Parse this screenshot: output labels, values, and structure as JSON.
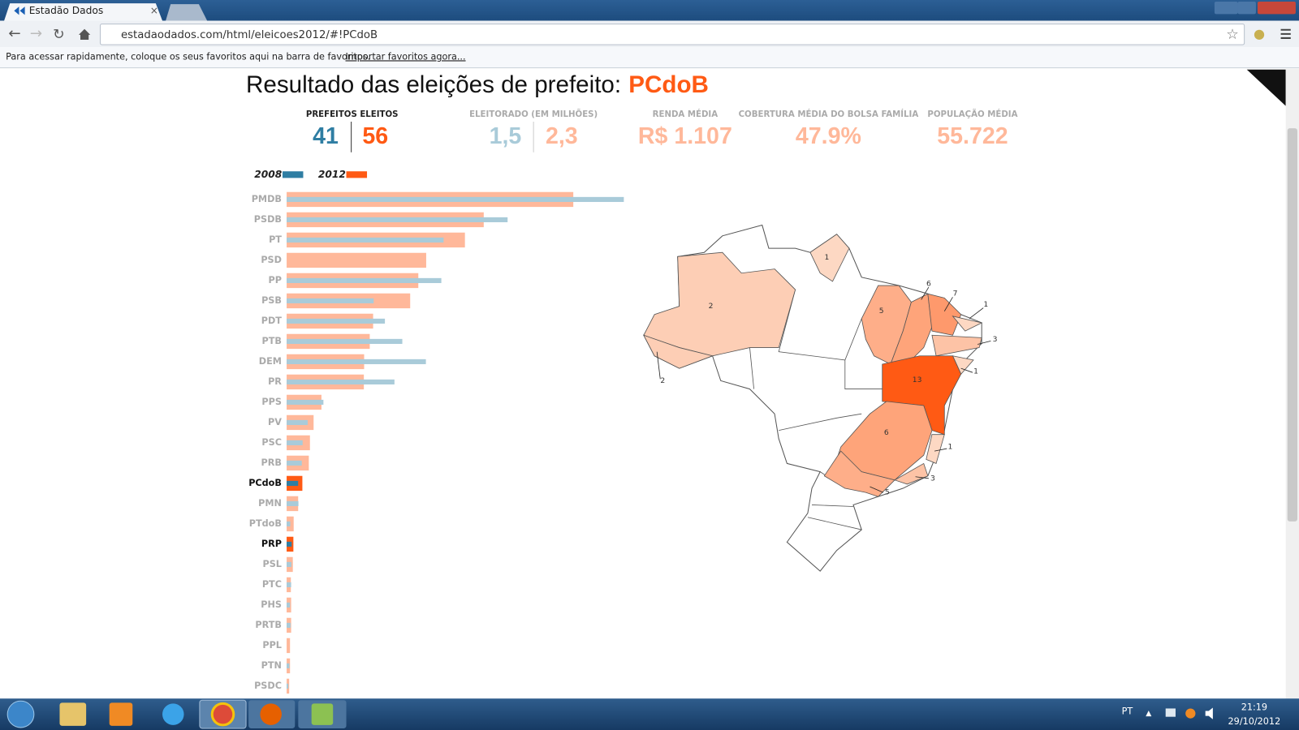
{
  "browser": {
    "tab_title": "Estadão Dados",
    "url": "estadaodados.com/html/eleicoes2012/#!PCdoB",
    "bookmarks_text": "Para acessar rapidamente, coloque os seus favoritos aqui na barra de favoritos.",
    "bookmarks_link": "Importar favoritos agora..."
  },
  "header": {
    "title": "Resultado das eleições de prefeito:",
    "party": "PCdoB"
  },
  "stats": [
    {
      "label": "PREFEITOS ELEITOS",
      "values": [
        "41",
        "56"
      ]
    },
    {
      "label": "ELEITORADO (EM MILHÕES)",
      "values": [
        "1,5",
        "2,3"
      ]
    },
    {
      "label": "RENDA MÉDIA",
      "values": [
        "R$ 1.107"
      ]
    },
    {
      "label": "COBERTURA MÉDIA DO BOLSA FAMÍLIA",
      "values": [
        "47.9%"
      ]
    },
    {
      "label": "POPULAÇÃO MÉDIA",
      "values": [
        "55.722"
      ]
    }
  ],
  "chart_data": {
    "type": "bar",
    "orientation": "horizontal",
    "categories": [
      "PMDB",
      "PSDB",
      "PT",
      "PSD",
      "PP",
      "PSB",
      "PDT",
      "PTB",
      "DEM",
      "PR",
      "PPS",
      "PV",
      "PSC",
      "PRB",
      "PCdoB",
      "PMN",
      "PTdoB",
      "PRP",
      "PSL",
      "PTC",
      "PHS",
      "PRTB",
      "PPL",
      "PTN",
      "PSDC"
    ],
    "series": [
      {
        "name": "2008",
        "color": "#2f7ea3",
        "muted_color": "#a9cbd9",
        "values": [
          1201,
          787,
          559,
          0,
          551,
          310,
          350,
          412,
          496,
          384,
          131,
          75,
          57,
          54,
          41,
          42,
          13,
          18,
          17,
          16,
          12,
          14,
          0,
          10,
          6
        ]
      },
      {
        "name": "2012",
        "color": "#ff5a14",
        "muted_color": "#ffb89a",
        "values": [
          1021,
          702,
          635,
          497,
          469,
          440,
          308,
          296,
          276,
          275,
          124,
          96,
          83,
          79,
          56,
          41,
          25,
          24,
          22,
          15,
          16,
          16,
          12,
          12,
          9
        ]
      }
    ],
    "highlight": [
      14,
      17
    ]
  },
  "map": {
    "regions": [
      {
        "value": 2
      },
      {
        "value": 2
      },
      {
        "value": 1
      },
      {
        "value": 5
      },
      {
        "value": 6
      },
      {
        "value": 7
      },
      {
        "value": 1
      },
      {
        "value": 3
      },
      {
        "value": 1
      },
      {
        "value": 13
      },
      {
        "value": 6
      },
      {
        "value": 1
      },
      {
        "value": 3
      },
      {
        "value": 5
      }
    ]
  },
  "taskbar": {
    "language": "PT",
    "time": "21:19",
    "date": "29/10/2012"
  }
}
